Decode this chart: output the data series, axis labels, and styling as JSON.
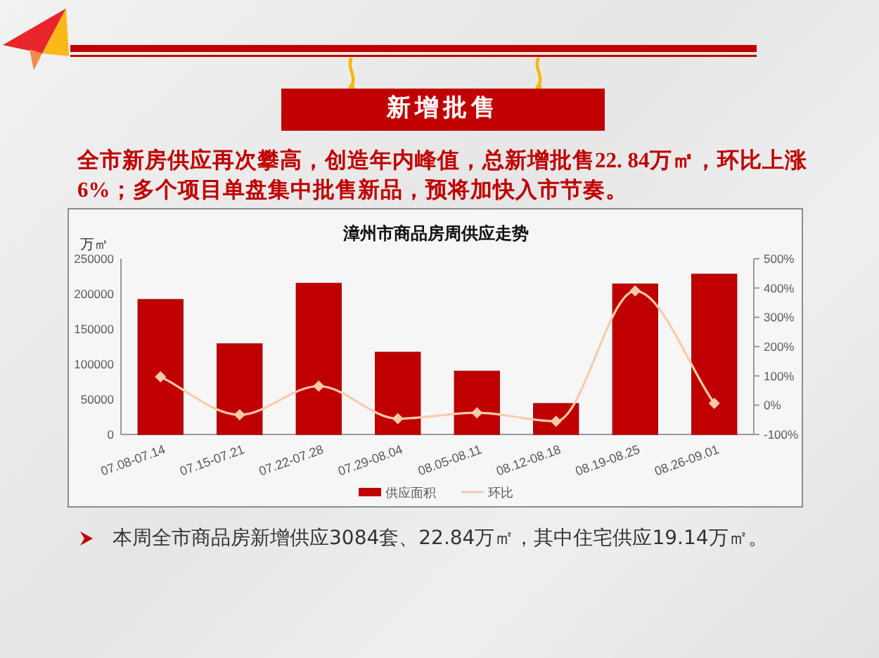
{
  "chart_data": {
    "type": "bar",
    "title": "漳州市商品房周供应走势",
    "ylabel": "万㎡",
    "categories": [
      "07.08-07.14",
      "07.15-07.21",
      "07.22-07.28",
      "07.29-08.04",
      "08.05-08.11",
      "08.12-08.18",
      "08.19-08.25",
      "08.26-09.01"
    ],
    "series": [
      {
        "name": "供应面积",
        "color": "#c00000",
        "values": [
          192000,
          129000,
          215000,
          117000,
          90000,
          44000,
          214000,
          228000
        ]
      },
      {
        "name": "环比",
        "type": "line",
        "axis": "y2",
        "color": "#f8cbad",
        "marker": "diamond",
        "values": [
          97,
          -33,
          65,
          -46,
          -26,
          -55,
          390,
          6
        ]
      }
    ],
    "ylim": [
      0,
      250000
    ],
    "yticks": [
      0,
      50000,
      100000,
      150000,
      200000,
      250000
    ],
    "y2lim": [
      -100,
      500
    ],
    "y2ticks": [
      {
        "value": -100,
        "label": "-100%"
      },
      {
        "value": 0,
        "label": "0%"
      },
      {
        "value": 100,
        "label": "100%"
      },
      {
        "value": 200,
        "label": "200%"
      },
      {
        "value": 300,
        "label": "300%"
      },
      {
        "value": 400,
        "label": "400%"
      },
      {
        "value": 500,
        "label": "500%"
      }
    ],
    "legend": "bottom",
    "annotations": [
      "新增批售",
      "全市新房供应再次攀高，创造年内峰值，总新增批售22. 84万㎡，环比上涨6%；多个项目单盘集中批售新品，预将加快入市节奏。",
      "本周全市商品房新增供应3084套、22.84万㎡，其中住宅供应19.14万㎡。"
    ]
  }
}
